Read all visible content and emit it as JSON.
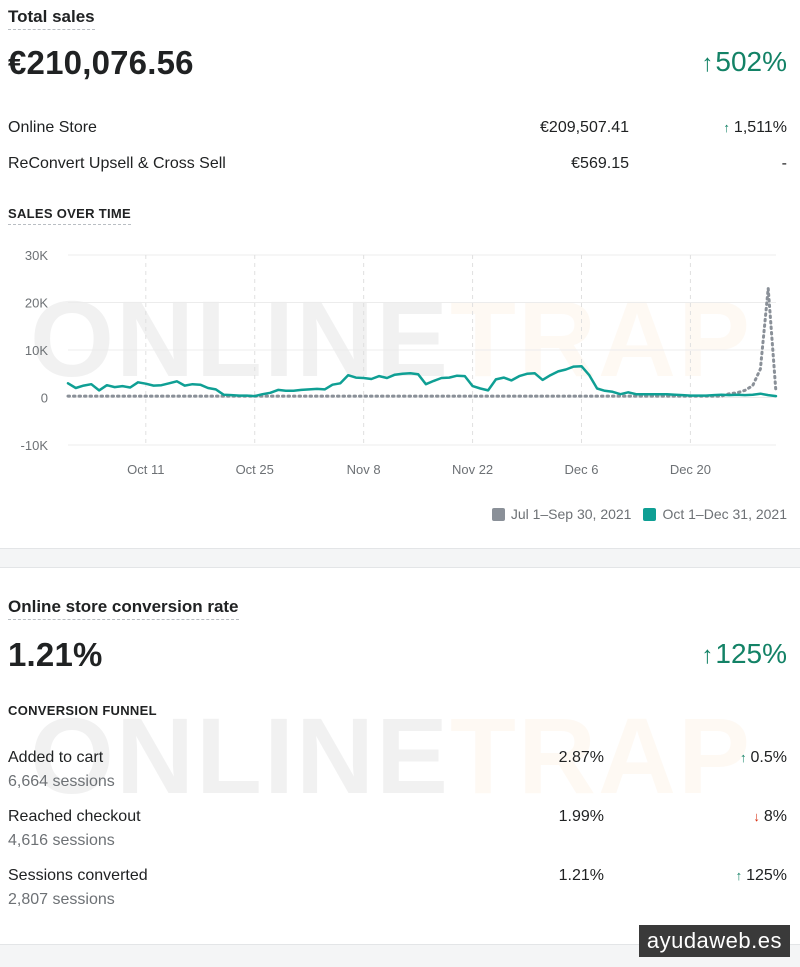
{
  "total_sales": {
    "title": "Total sales",
    "value": "€210,076.56",
    "change_arrow": "↑",
    "change": "502%",
    "rows": [
      {
        "label": "Online Store",
        "value": "€209,507.41",
        "arrow": "↑",
        "change": "1,511%"
      },
      {
        "label": "ReConvert Upsell & Cross Sell",
        "value": "€569.15",
        "arrow": "",
        "change": "-"
      }
    ]
  },
  "sales_over_time": {
    "label": "SALES OVER TIME"
  },
  "chart_data": {
    "type": "line",
    "x_tick_labels": [
      "Oct 11",
      "Oct 25",
      "Nov 8",
      "Nov 22",
      "Dec 6",
      "Dec 20"
    ],
    "y_tick_labels": [
      "30K",
      "20K",
      "10K",
      "0",
      "-10K"
    ],
    "ylim": [
      -10000,
      30000
    ],
    "grid": true,
    "legend_position": "bottom-right",
    "series": [
      {
        "name": "Jul 1–Sep 30, 2021",
        "color": "#8a9098",
        "style": "dotted",
        "values": [
          300,
          300,
          300,
          300,
          300,
          300,
          300,
          300,
          300,
          300,
          300,
          300,
          300,
          300,
          300,
          300,
          300,
          300,
          300,
          300,
          300,
          300,
          300,
          300,
          300,
          300,
          300,
          300,
          300,
          300,
          300,
          300,
          300,
          300,
          300,
          300,
          300,
          300,
          300,
          300,
          300,
          300,
          300,
          300,
          300,
          300,
          300,
          300,
          300,
          300,
          300,
          300,
          300,
          300,
          300,
          300,
          300,
          300,
          300,
          300,
          300,
          300,
          300,
          300,
          300,
          300,
          300,
          300,
          300,
          300,
          300,
          300,
          300,
          300,
          300,
          300,
          300,
          300,
          300,
          300,
          300,
          300,
          300,
          300,
          300,
          800,
          1000,
          1500,
          2500,
          6000,
          23000,
          1000
        ]
      },
      {
        "name": "Oct 1–Dec 31, 2021",
        "color": "#0f9f94",
        "style": "solid",
        "values": [
          3000,
          2000,
          2500,
          2800,
          1500,
          2600,
          2200,
          2400,
          2100,
          3200,
          2900,
          2500,
          2600,
          3000,
          3400,
          2500,
          2800,
          2700,
          2000,
          1700,
          600,
          500,
          400,
          400,
          300,
          700,
          1000,
          1600,
          1400,
          1400,
          1600,
          1700,
          1800,
          1700,
          2700,
          3000,
          4700,
          4200,
          4100,
          3900,
          4500,
          4100,
          4800,
          5000,
          5100,
          4900,
          2800,
          3500,
          4100,
          4200,
          4600,
          4500,
          2400,
          1900,
          1500,
          3800,
          4200,
          3600,
          4500,
          5000,
          5100,
          3700,
          4700,
          5500,
          5900,
          6500,
          6600,
          4700,
          1900,
          1400,
          1200,
          700,
          1100,
          700,
          700,
          700,
          700,
          700,
          600,
          500,
          400,
          400,
          400,
          500,
          600,
          500,
          600,
          500,
          600,
          800,
          500,
          300
        ]
      }
    ]
  },
  "legend": [
    {
      "label": "Jul 1–Sep 30, 2021",
      "color": "#8a9098"
    },
    {
      "label": "Oct 1–Dec 31, 2021",
      "color": "#0f9f94"
    }
  ],
  "conversion": {
    "title": "Online store conversion rate",
    "value": "1.21%",
    "change_arrow": "↑",
    "change": "125%",
    "funnel_label": "CONVERSION FUNNEL",
    "funnel": [
      {
        "label": "Added to cart",
        "sessions": "6,664 sessions",
        "rate": "2.87%",
        "arrow": "↑",
        "dir": "up",
        "change": "0.5%"
      },
      {
        "label": "Reached checkout",
        "sessions": "4,616 sessions",
        "rate": "1.99%",
        "arrow": "↓",
        "dir": "down",
        "change": "8%"
      },
      {
        "label": "Sessions converted",
        "sessions": "2,807 sessions",
        "rate": "1.21%",
        "arrow": "↑",
        "dir": "up",
        "change": "125%"
      }
    ]
  },
  "watermark": {
    "part1": "ONLINE",
    "part2": "TRAP"
  },
  "credit": "ayudaweb.es"
}
